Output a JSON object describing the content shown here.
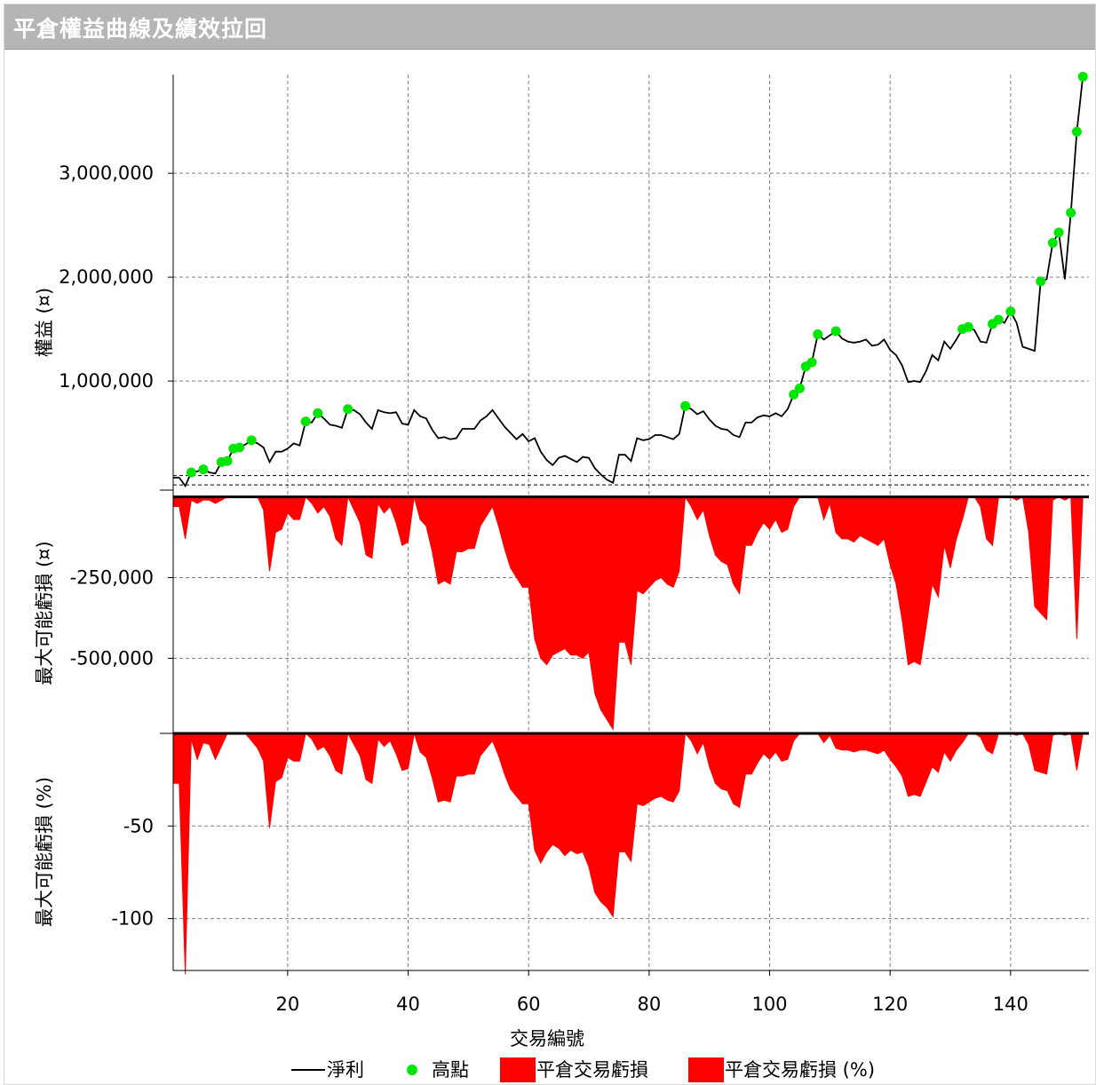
{
  "window": {
    "title": "平倉權益曲線及績效拉回"
  },
  "colors": {
    "line": "#000000",
    "peak": "#00e600",
    "drawdown": "#ff0000",
    "grid": "#808080"
  },
  "chart_data": [
    {
      "type": "line",
      "ylabel": "權益 (¤)",
      "ylim": [
        -50000,
        3950000
      ],
      "yticks": [
        1000000,
        2000000,
        3000000
      ],
      "ytick_labels": [
        "1,000,000",
        "2,000,000",
        "3,000,000"
      ],
      "xlim": [
        1,
        153
      ],
      "series": [
        {
          "name": "淨利",
          "points": [
            [
              1,
              70000
            ],
            [
              2,
              70000
            ],
            [
              3,
              -10000
            ],
            [
              4,
              120000
            ],
            [
              5,
              130000
            ],
            [
              6,
              150000
            ],
            [
              7,
              120000
            ],
            [
              8,
              110000
            ],
            [
              9,
              220000
            ],
            [
              10,
              230000
            ],
            [
              11,
              350000
            ],
            [
              12,
              360000
            ],
            [
              13,
              390000
            ],
            [
              14,
              430000
            ],
            [
              15,
              400000
            ],
            [
              16,
              360000
            ],
            [
              17,
              220000
            ],
            [
              18,
              320000
            ],
            [
              19,
              320000
            ],
            [
              20,
              350000
            ],
            [
              21,
              400000
            ],
            [
              22,
              380000
            ],
            [
              23,
              610000
            ],
            [
              24,
              600000
            ],
            [
              25,
              690000
            ],
            [
              26,
              640000
            ],
            [
              27,
              580000
            ],
            [
              28,
              570000
            ],
            [
              29,
              550000
            ],
            [
              30,
              730000
            ],
            [
              31,
              720000
            ],
            [
              32,
              680000
            ],
            [
              33,
              600000
            ],
            [
              34,
              540000
            ],
            [
              35,
              720000
            ],
            [
              36,
              700000
            ],
            [
              37,
              690000
            ],
            [
              38,
              700000
            ],
            [
              39,
              590000
            ],
            [
              40,
              580000
            ],
            [
              41,
              720000
            ],
            [
              42,
              660000
            ],
            [
              43,
              640000
            ],
            [
              44,
              530000
            ],
            [
              45,
              450000
            ],
            [
              46,
              460000
            ],
            [
              47,
              440000
            ],
            [
              48,
              450000
            ],
            [
              49,
              540000
            ],
            [
              50,
              540000
            ],
            [
              51,
              540000
            ],
            [
              52,
              620000
            ],
            [
              53,
              660000
            ],
            [
              54,
              720000
            ],
            [
              55,
              640000
            ],
            [
              56,
              560000
            ],
            [
              57,
              500000
            ],
            [
              58,
              440000
            ],
            [
              59,
              490000
            ],
            [
              60,
              420000
            ],
            [
              61,
              450000
            ],
            [
              62,
              320000
            ],
            [
              63,
              240000
            ],
            [
              64,
              190000
            ],
            [
              65,
              260000
            ],
            [
              66,
              280000
            ],
            [
              67,
              250000
            ],
            [
              68,
              220000
            ],
            [
              69,
              270000
            ],
            [
              70,
              260000
            ],
            [
              71,
              160000
            ],
            [
              72,
              100000
            ],
            [
              73,
              50000
            ],
            [
              74,
              20000
            ],
            [
              75,
              290000
            ],
            [
              76,
              290000
            ],
            [
              77,
              230000
            ],
            [
              78,
              450000
            ],
            [
              79,
              430000
            ],
            [
              80,
              440000
            ],
            [
              81,
              480000
            ],
            [
              82,
              480000
            ],
            [
              83,
              460000
            ],
            [
              84,
              440000
            ],
            [
              85,
              490000
            ],
            [
              86,
              760000
            ],
            [
              87,
              730000
            ],
            [
              88,
              680000
            ],
            [
              89,
              710000
            ],
            [
              90,
              630000
            ],
            [
              91,
              570000
            ],
            [
              92,
              540000
            ],
            [
              93,
              530000
            ],
            [
              94,
              480000
            ],
            [
              95,
              460000
            ],
            [
              96,
              600000
            ],
            [
              97,
              600000
            ],
            [
              98,
              650000
            ],
            [
              99,
              670000
            ],
            [
              100,
              660000
            ],
            [
              101,
              690000
            ],
            [
              102,
              660000
            ],
            [
              103,
              730000
            ],
            [
              104,
              870000
            ],
            [
              105,
              930000
            ],
            [
              106,
              1140000
            ],
            [
              107,
              1180000
            ],
            [
              108,
              1450000
            ],
            [
              109,
              1400000
            ],
            [
              110,
              1440000
            ],
            [
              111,
              1480000
            ],
            [
              112,
              1410000
            ],
            [
              113,
              1380000
            ],
            [
              114,
              1370000
            ],
            [
              115,
              1380000
            ],
            [
              116,
              1400000
            ],
            [
              117,
              1340000
            ],
            [
              118,
              1350000
            ],
            [
              119,
              1400000
            ],
            [
              120,
              1300000
            ],
            [
              121,
              1250000
            ],
            [
              122,
              1150000
            ],
            [
              123,
              990000
            ],
            [
              124,
              1000000
            ],
            [
              125,
              990000
            ],
            [
              126,
              1100000
            ],
            [
              127,
              1250000
            ],
            [
              128,
              1200000
            ],
            [
              129,
              1380000
            ],
            [
              130,
              1310000
            ],
            [
              131,
              1400000
            ],
            [
              132,
              1500000
            ],
            [
              133,
              1520000
            ],
            [
              134,
              1490000
            ],
            [
              135,
              1380000
            ],
            [
              136,
              1370000
            ],
            [
              137,
              1550000
            ],
            [
              138,
              1590000
            ],
            [
              139,
              1560000
            ],
            [
              140,
              1670000
            ],
            [
              141,
              1560000
            ],
            [
              142,
              1330000
            ],
            [
              143,
              1310000
            ],
            [
              144,
              1290000
            ],
            [
              145,
              1960000
            ],
            [
              146,
              1980000
            ],
            [
              147,
              2330000
            ],
            [
              148,
              2430000
            ],
            [
              149,
              1980000
            ],
            [
              150,
              2620000
            ],
            [
              151,
              3400000
            ],
            [
              152,
              3930000
            ]
          ]
        },
        {
          "name": "高點",
          "points": [
            [
              4,
              120000
            ],
            [
              6,
              150000
            ],
            [
              9,
              220000
            ],
            [
              10,
              230000
            ],
            [
              11,
              350000
            ],
            [
              12,
              360000
            ],
            [
              14,
              430000
            ],
            [
              23,
              610000
            ],
            [
              25,
              690000
            ],
            [
              30,
              730000
            ],
            [
              86,
              760000
            ],
            [
              104,
              870000
            ],
            [
              105,
              930000
            ],
            [
              106,
              1140000
            ],
            [
              107,
              1180000
            ],
            [
              108,
              1450000
            ],
            [
              111,
              1480000
            ],
            [
              132,
              1500000
            ],
            [
              133,
              1520000
            ],
            [
              137,
              1550000
            ],
            [
              138,
              1590000
            ],
            [
              140,
              1670000
            ],
            [
              145,
              1960000
            ],
            [
              147,
              2330000
            ],
            [
              148,
              2430000
            ],
            [
              150,
              2620000
            ],
            [
              151,
              3400000
            ],
            [
              152,
              3930000
            ]
          ]
        }
      ],
      "reference_lines": [
        0,
        90000
      ]
    },
    {
      "type": "area",
      "ylabel": "最大可能虧損 (¤)",
      "ylim": [
        -730000,
        10000
      ],
      "yticks": [
        -250000,
        -500000
      ],
      "ytick_labels": [
        "-250,000",
        "-500,000"
      ],
      "series": [
        {
          "name": "平倉交易虧損",
          "values": [
            -30000,
            -30000,
            -130000,
            -10000,
            -20000,
            -10000,
            -10000,
            -20000,
            -10000,
            0,
            0,
            0,
            0,
            0,
            0,
            -40000,
            -230000,
            -110000,
            -100000,
            -50000,
            -70000,
            -70000,
            0,
            -20000,
            -50000,
            -30000,
            -60000,
            -130000,
            -150000,
            0,
            -40000,
            -80000,
            -180000,
            -190000,
            -20000,
            -50000,
            -30000,
            -80000,
            -150000,
            -140000,
            0,
            -70000,
            -90000,
            -170000,
            -270000,
            -260000,
            -270000,
            -170000,
            -170000,
            -160000,
            -160000,
            -90000,
            -60000,
            -30000,
            -90000,
            -160000,
            -220000,
            -250000,
            -280000,
            -280000,
            -440000,
            -500000,
            -520000,
            -490000,
            -480000,
            -470000,
            -490000,
            -490000,
            -500000,
            -480000,
            -610000,
            -660000,
            -690000,
            -720000,
            -450000,
            -450000,
            -520000,
            -290000,
            -300000,
            -280000,
            -260000,
            -250000,
            -270000,
            -280000,
            -230000,
            0,
            -30000,
            -70000,
            -40000,
            -120000,
            -180000,
            -200000,
            -210000,
            -270000,
            -300000,
            -150000,
            -150000,
            -110000,
            -80000,
            -100000,
            -70000,
            -110000,
            -100000,
            -30000,
            0,
            0,
            0,
            0,
            -70000,
            -20000,
            -110000,
            -130000,
            -130000,
            -140000,
            -120000,
            -130000,
            -140000,
            -150000,
            -130000,
            -210000,
            -270000,
            -380000,
            -520000,
            -510000,
            -520000,
            -400000,
            -270000,
            -310000,
            -150000,
            -220000,
            -130000,
            -70000,
            0,
            0,
            -30000,
            -130000,
            -150000,
            0,
            0,
            0,
            -10000,
            0,
            -110000,
            -340000,
            -360000,
            -380000,
            -10000,
            0,
            -10000,
            0,
            -440000,
            0
          ]
        }
      ]
    },
    {
      "type": "area",
      "ylabel": "最大可能虧損 (%)",
      "xlabel": "交易編號",
      "ylim": [
        -128,
        0
      ],
      "yticks": [
        -50,
        -100
      ],
      "ytick_labels": [
        "-50",
        "-100"
      ],
      "xticks": [
        20,
        40,
        60,
        80,
        100,
        120,
        140
      ],
      "series": [
        {
          "name": "平倉交易虧損 (%)",
          "values": [
            -27,
            -27,
            -130,
            -3,
            -14,
            -5,
            -6,
            -14,
            -7,
            0,
            0,
            0,
            0,
            -4,
            -8,
            -15,
            -51,
            -26,
            -24,
            -13,
            -15,
            -15,
            0,
            -3,
            -9,
            -7,
            -12,
            -20,
            -22,
            0,
            -6,
            -12,
            -25,
            -27,
            -3,
            -7,
            -4,
            -11,
            -20,
            -19,
            0,
            -10,
            -13,
            -24,
            -37,
            -36,
            -37,
            -23,
            -23,
            -22,
            -22,
            -12,
            -8,
            -4,
            -12,
            -22,
            -30,
            -34,
            -38,
            -38,
            -63,
            -70,
            -64,
            -60,
            -62,
            -66,
            -63,
            -65,
            -64,
            -72,
            -86,
            -91,
            -94,
            -99,
            -64,
            -64,
            -69,
            -38,
            -39,
            -37,
            -35,
            -34,
            -36,
            -37,
            -31,
            0,
            -4,
            -11,
            -5,
            -18,
            -27,
            -30,
            -31,
            -38,
            -40,
            -22,
            -22,
            -16,
            -11,
            -14,
            -10,
            -15,
            -14,
            -4,
            0,
            0,
            0,
            0,
            -5,
            -1,
            -8,
            -9,
            -9,
            -10,
            -9,
            -9,
            -10,
            -11,
            -9,
            -14,
            -18,
            -23,
            -34,
            -33,
            -34,
            -26,
            -18,
            -21,
            -10,
            -15,
            -9,
            -5,
            0,
            0,
            -2,
            -9,
            -11,
            0,
            0,
            0,
            -1,
            0,
            -6,
            -20,
            -21,
            -22,
            -1,
            0,
            -1,
            0,
            -20,
            0
          ]
        }
      ]
    }
  ],
  "legend": {
    "placement": "bottom",
    "items": [
      {
        "label": "淨利",
        "kind": "line"
      },
      {
        "label": "高點",
        "kind": "dot"
      },
      {
        "label": "平倉交易虧損",
        "kind": "box"
      },
      {
        "label": "平倉交易虧損 (%)",
        "kind": "box"
      }
    ]
  }
}
